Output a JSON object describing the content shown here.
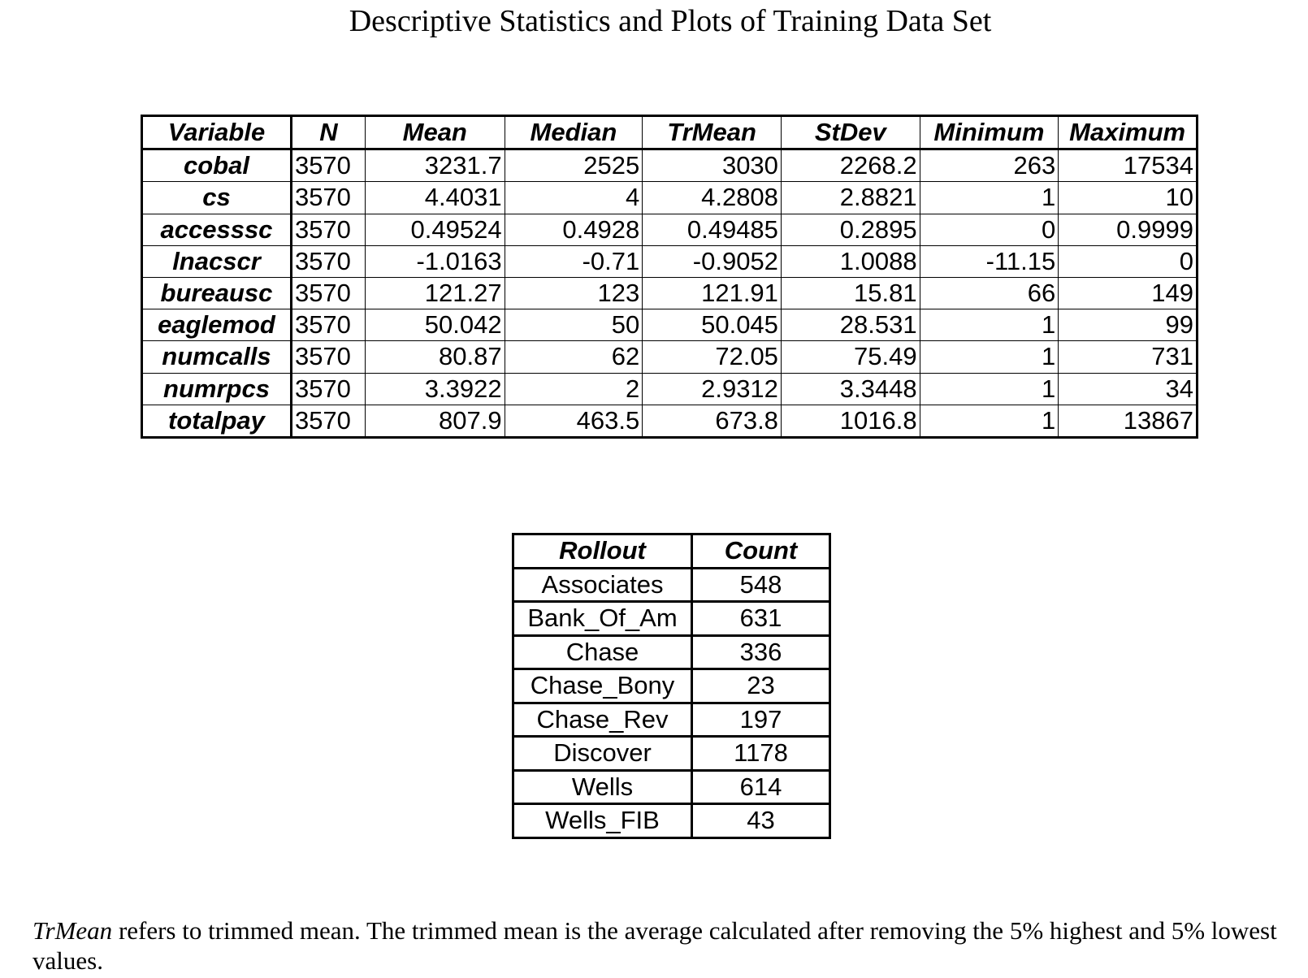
{
  "title": "Descriptive Statistics and Plots of Training Data Set",
  "stats_table": {
    "headers": [
      "Variable",
      "N",
      "Mean",
      "Median",
      "TrMean",
      "StDev",
      "Minimum",
      "Maximum"
    ],
    "rows": [
      {
        "variable": "cobal",
        "n": "3570",
        "mean": "3231.7",
        "median": "2525",
        "trmean": "3030",
        "stdev": "2268.2",
        "minimum": "263",
        "maximum": "17534"
      },
      {
        "variable": "cs",
        "n": "3570",
        "mean": "4.4031",
        "median": "4",
        "trmean": "4.2808",
        "stdev": "2.8821",
        "minimum": "1",
        "maximum": "10"
      },
      {
        "variable": "accesssc",
        "n": "3570",
        "mean": "0.49524",
        "median": "0.4928",
        "trmean": "0.49485",
        "stdev": "0.2895",
        "minimum": "0",
        "maximum": "0.9999"
      },
      {
        "variable": "lnacscr",
        "n": "3570",
        "mean": "-1.0163",
        "median": "-0.71",
        "trmean": "-0.9052",
        "stdev": "1.0088",
        "minimum": "-11.15",
        "maximum": "0"
      },
      {
        "variable": "bureausc",
        "n": "3570",
        "mean": "121.27",
        "median": "123",
        "trmean": "121.91",
        "stdev": "15.81",
        "minimum": "66",
        "maximum": "149"
      },
      {
        "variable": "eaglemod",
        "n": "3570",
        "mean": "50.042",
        "median": "50",
        "trmean": "50.045",
        "stdev": "28.531",
        "minimum": "1",
        "maximum": "99"
      },
      {
        "variable": "numcalls",
        "n": "3570",
        "mean": "80.87",
        "median": "62",
        "trmean": "72.05",
        "stdev": "75.49",
        "minimum": "1",
        "maximum": "731"
      },
      {
        "variable": "numrpcs",
        "n": "3570",
        "mean": "3.3922",
        "median": "2",
        "trmean": "2.9312",
        "stdev": "3.3448",
        "minimum": "1",
        "maximum": "34"
      },
      {
        "variable": "totalpay",
        "n": "3570",
        "mean": "807.9",
        "median": "463.5",
        "trmean": "673.8",
        "stdev": "1016.8",
        "minimum": "1",
        "maximum": "13867"
      }
    ]
  },
  "rollout_table": {
    "headers": [
      "Rollout",
      "Count"
    ],
    "rows": [
      {
        "rollout": "Associates",
        "count": "548"
      },
      {
        "rollout": "Bank_Of_Am",
        "count": "631"
      },
      {
        "rollout": "Chase",
        "count": "336"
      },
      {
        "rollout": "Chase_Bony",
        "count": "23"
      },
      {
        "rollout": "Chase_Rev",
        "count": "197"
      },
      {
        "rollout": "Discover",
        "count": "1178"
      },
      {
        "rollout": "Wells",
        "count": "614"
      },
      {
        "rollout": "Wells_FIB",
        "count": "43"
      }
    ]
  },
  "footnote": {
    "term": "TrMean",
    "text": " refers to trimmed mean. The trimmed mean is the average calculated after removing the 5% highest and 5% lowest values."
  }
}
